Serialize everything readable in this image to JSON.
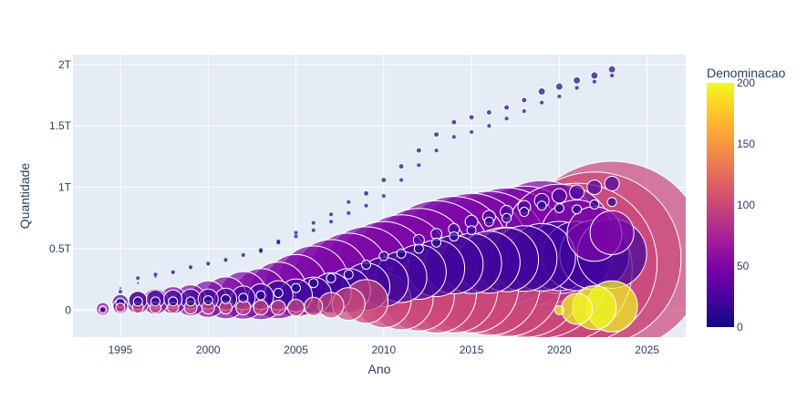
{
  "chart_data": {
    "type": "scatter",
    "xlabel": "Ano",
    "ylabel": "Quantidade",
    "xlim": [
      1992.3,
      2027.2
    ],
    "ylim": [
      -0.22,
      2.08
    ],
    "y_unit": "T",
    "x_ticks": [
      1995,
      2000,
      2005,
      2010,
      2015,
      2020,
      2025
    ],
    "x_tick_labels": [
      "1995",
      "2000",
      "2005",
      "2010",
      "2015",
      "2020",
      "2025"
    ],
    "y_ticks": [
      0,
      0.5,
      1,
      1.5,
      2
    ],
    "y_tick_labels": [
      "0",
      "0.5T",
      "1T",
      "1.5T",
      "2T"
    ],
    "colorbar": {
      "title": "Denominacao",
      "range": [
        0,
        200
      ],
      "ticks": [
        0,
        50,
        100,
        150,
        200
      ],
      "tick_labels": [
        "0",
        "50",
        "100",
        "150",
        "200"
      ],
      "colors": [
        "#0d0887",
        "#46039f",
        "#7201a8",
        "#9c179e",
        "#bd3786",
        "#d8576b",
        "#ed7953",
        "#fb9f3a",
        "#fdca26",
        "#f0f921"
      ]
    },
    "size_encoding": "bubble area",
    "series": [
      {
        "denomination": 1,
        "x": [
          1994,
          1995,
          1996,
          1997,
          1998,
          1999,
          2000,
          2001,
          2002,
          2003,
          2004,
          2005,
          2006,
          2007,
          2008,
          2009,
          2010,
          2011,
          2012,
          2013,
          2014,
          2015,
          2016,
          2017,
          2018,
          2019,
          2020,
          2021,
          2022,
          2023
        ],
        "y": [
          0.003,
          0.18,
          0.22,
          0.27,
          0.3,
          0.34,
          0.37,
          0.4,
          0.44,
          0.48,
          0.55,
          0.6,
          0.65,
          0.72,
          0.79,
          0.85,
          0.93,
          1.06,
          1.18,
          1.3,
          1.41,
          1.45,
          1.5,
          1.56,
          1.62,
          1.69,
          1.74,
          1.81,
          1.86,
          1.91
        ],
        "size": [
          1,
          1,
          1,
          1,
          1,
          1,
          1,
          1,
          1,
          2,
          2,
          2,
          2,
          2,
          2,
          2,
          2,
          2,
          2,
          2,
          2,
          2,
          2,
          2,
          2,
          2,
          2,
          2,
          2,
          2
        ]
      },
      {
        "denomination": 5,
        "x": [
          1994,
          1995,
          1996,
          1997,
          1998,
          1999,
          2000,
          2001,
          2002,
          2003,
          2004,
          2005,
          2006,
          2007,
          2008,
          2009,
          2010,
          2011,
          2012,
          2013,
          2014,
          2015,
          2016,
          2017,
          2018,
          2019,
          2020,
          2021,
          2022,
          2023
        ],
        "y": [
          0.003,
          0.15,
          0.26,
          0.29,
          0.31,
          0.35,
          0.38,
          0.41,
          0.45,
          0.49,
          0.56,
          0.63,
          0.71,
          0.78,
          0.88,
          0.95,
          1.06,
          1.17,
          1.3,
          1.43,
          1.53,
          1.57,
          1.61,
          1.65,
          1.71,
          1.78,
          1.82,
          1.87,
          1.91,
          1.96
        ],
        "size": [
          2,
          2,
          2,
          2,
          2,
          2,
          2,
          2,
          2,
          2,
          2,
          2,
          2,
          2,
          2,
          3,
          3,
          3,
          3,
          3,
          3,
          3,
          3,
          3,
          3,
          4,
          4,
          4,
          4,
          4
        ]
      },
      {
        "denomination": 10,
        "x": [
          1994,
          1995,
          1996,
          1997,
          1998,
          1999,
          2000,
          2001,
          2002,
          2003,
          2004,
          2005,
          2006,
          2007,
          2008,
          2009,
          2010,
          2011,
          2012,
          2013,
          2014,
          2015,
          2016,
          2017,
          2018,
          2019,
          2020,
          2021,
          2022,
          2023
        ],
        "y": [
          0.005,
          0.06,
          0.07,
          0.07,
          0.07,
          0.07,
          0.08,
          0.09,
          0.1,
          0.12,
          0.14,
          0.18,
          0.22,
          0.26,
          0.29,
          0.37,
          0.44,
          0.46,
          0.5,
          0.55,
          0.6,
          0.65,
          0.72,
          0.75,
          0.8,
          0.85,
          0.83,
          0.82,
          0.86,
          0.88
        ],
        "size": [
          4,
          5,
          5,
          5,
          5,
          5,
          5,
          5,
          5,
          5,
          5,
          5,
          5,
          5,
          5,
          5,
          5,
          5,
          5,
          5,
          5,
          5,
          5,
          5,
          5,
          5,
          5,
          5,
          5,
          5
        ]
      },
      {
        "denomination": 25,
        "x": [
          2012,
          2013,
          2014,
          2015,
          2016,
          2017,
          2018,
          2019,
          2020,
          2021,
          2022,
          2023
        ],
        "y": [
          0.57,
          0.62,
          0.66,
          0.72,
          0.76,
          0.8,
          0.84,
          0.89,
          0.93,
          0.96,
          1.0,
          1.03
        ],
        "size": [
          6,
          6,
          6,
          7,
          7,
          7,
          7,
          8,
          8,
          8,
          8,
          8
        ]
      },
      {
        "denomination": 20,
        "x": [
          1995,
          1996,
          1997,
          1998,
          1999,
          2000,
          2001,
          2002,
          2003,
          2004,
          2005,
          2006,
          2007,
          2008,
          2009,
          2010,
          2011,
          2012,
          2013,
          2014,
          2015,
          2016,
          2017,
          2018,
          2019,
          2020,
          2021,
          2022,
          2023
        ],
        "y": [
          0.06,
          0.08,
          0.09,
          0.09,
          0.09,
          0.09,
          0.09,
          0.1,
          0.11,
          0.12,
          0.12,
          0.12,
          0.14,
          0.16,
          0.19,
          0.23,
          0.27,
          0.31,
          0.34,
          0.37,
          0.38,
          0.39,
          0.41,
          0.42,
          0.43,
          0.44,
          0.44,
          0.45,
          0.46
        ],
        "size": [
          9,
          10,
          10,
          10,
          11,
          11,
          12,
          13,
          14,
          16,
          18,
          20,
          22,
          24,
          26,
          27,
          28,
          30,
          31,
          32,
          33,
          34,
          35,
          36,
          37,
          38,
          38,
          38,
          38
        ]
      },
      {
        "denomination": 50,
        "x": [
          1994,
          1995,
          1996,
          1997,
          1998,
          1999,
          2000,
          2001,
          2002,
          2003,
          2004,
          2005,
          2006,
          2007,
          2008,
          2009,
          2010,
          2011,
          2012,
          2013,
          2014,
          2015,
          2016,
          2017,
          2018,
          2019,
          2020,
          2021,
          2022,
          2023
        ],
        "y": [
          0.01,
          0.03,
          0.06,
          0.07,
          0.08,
          0.08,
          0.09,
          0.1,
          0.12,
          0.13,
          0.16,
          0.2,
          0.24,
          0.27,
          0.3,
          0.33,
          0.35,
          0.39,
          0.42,
          0.46,
          0.48,
          0.49,
          0.5,
          0.52,
          0.52,
          0.55,
          0.58,
          0.6,
          0.62,
          0.63
        ],
        "size": [
          7,
          8,
          12,
          14,
          15,
          17,
          20,
          23,
          26,
          28,
          31,
          34,
          38,
          41,
          44,
          47,
          50,
          52,
          55,
          58,
          60,
          62,
          63,
          64,
          66,
          68,
          60,
          40,
          30,
          24
        ]
      },
      {
        "denomination": 100,
        "x": [
          1994,
          1995,
          1996,
          1997,
          1998,
          1999,
          2000,
          2001,
          2002,
          2003,
          2004,
          2005,
          2006,
          2007,
          2008,
          2009,
          2010,
          2011,
          2012,
          2013,
          2014,
          2015,
          2016,
          2017,
          2018,
          2019,
          2020,
          2021,
          2022,
          2023
        ],
        "y": [
          0.003,
          0.02,
          0.02,
          0.02,
          0.02,
          0.02,
          0.02,
          0.02,
          0.02,
          0.02,
          0.02,
          0.02,
          0.03,
          0.04,
          0.05,
          0.07,
          0.08,
          0.1,
          0.12,
          0.14,
          0.17,
          0.2,
          0.21,
          0.23,
          0.26,
          0.3,
          0.33,
          0.38,
          0.42,
          0.44
        ],
        "size": [
          4,
          5,
          6,
          6,
          6,
          7,
          7,
          7,
          8,
          8,
          8,
          9,
          10,
          14,
          18,
          24,
          30,
          35,
          39,
          44,
          48,
          52,
          56,
          60,
          65,
          71,
          80,
          88,
          95,
          104
        ]
      },
      {
        "denomination": 200,
        "x": [
          2020,
          2021,
          2022,
          2023
        ],
        "y": [
          0.0,
          0.01,
          0.02,
          0.03
        ],
        "size": [
          5,
          17,
          24,
          28
        ]
      }
    ]
  }
}
